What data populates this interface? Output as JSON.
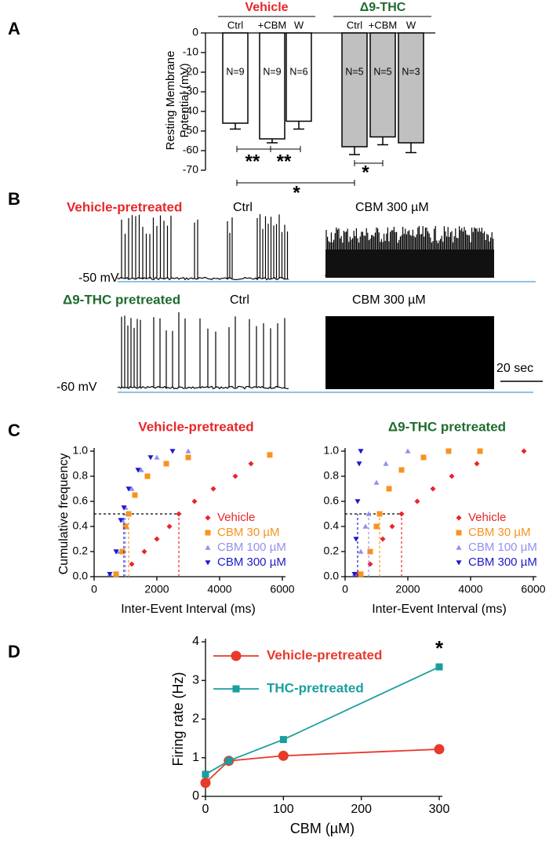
{
  "panel_letters": [
    "A",
    "B",
    "C",
    "D"
  ],
  "panel_b": {
    "top_title": "Vehicle-pretreated",
    "top_ctrl": "Ctrl",
    "top_cbm": "CBM 300 µM",
    "top_mv": "-50 mV",
    "bottom_title": "Δ9-THC pretreated",
    "bottom_ctrl": "Ctrl",
    "bottom_cbm": "CBM 300 µM",
    "bottom_mv": "-60 mV",
    "scale": "20 sec"
  },
  "chart_data": [
    {
      "type": "bar",
      "groups": [
        "Vehicle",
        "Δ9-THC"
      ],
      "group_colors": [
        "#e8262a",
        "#1e6b2e"
      ],
      "categories": [
        "Ctrl",
        "+CBM",
        "W",
        "Ctrl",
        "+CBM",
        "W"
      ],
      "values": [
        -46,
        -54,
        -45,
        -58,
        -53,
        -56
      ],
      "errors": [
        3,
        2,
        4,
        4,
        4,
        5
      ],
      "n_labels": [
        "N=9",
        "N=9",
        "N=6",
        "N=5",
        "N=5",
        "N=3"
      ],
      "bar_colors": [
        "#ffffff",
        "#ffffff",
        "#ffffff",
        "#c0c0c0",
        "#c0c0c0",
        "#c0c0c0"
      ],
      "y_label": [
        "Resting Membrane",
        "Potential (mV)"
      ],
      "ylim": [
        -70,
        0
      ],
      "yticks": [
        0,
        -10,
        -20,
        -30,
        -40,
        -50,
        -60,
        -70
      ],
      "significance": [
        "**",
        "**",
        "*",
        "*"
      ]
    },
    {
      "type": "scatter",
      "title": "Vehicle-pretreated",
      "title_color": "#e8262a",
      "y_label": "Cumulative frequency",
      "x_label": "Inter-Event Interval (ms)",
      "xlim": [
        0,
        6000
      ],
      "xticks": [
        0,
        2000,
        4000,
        6000
      ],
      "ylim": [
        0,
        1
      ],
      "yticks": [
        {
          "value": 0,
          "label": "0.0"
        },
        0.2,
        0.4,
        0.6,
        0.8,
        {
          "value": 1,
          "label": "1.0"
        }
      ],
      "reference_y": 0.5,
      "legend": "lower right",
      "series": [
        {
          "name": "Vehicle",
          "color": "#e8262a",
          "marker": "diamond",
          "median": 2700,
          "x": [
            700,
            1200,
            1600,
            2000,
            2400,
            2700,
            3200,
            3800,
            4500,
            5000,
            5600
          ],
          "values": [
            0.02,
            0.1,
            0.2,
            0.3,
            0.4,
            0.5,
            0.6,
            0.7,
            0.8,
            0.9,
            0.97
          ]
        },
        {
          "name": "CBM 30 µM",
          "color": "#f7931e",
          "marker": "square",
          "median": 1100,
          "x": [
            700,
            900,
            1000,
            1100,
            1300,
            1700,
            2300,
            3000,
            5600
          ],
          "values": [
            0.02,
            0.2,
            0.4,
            0.5,
            0.65,
            0.8,
            0.9,
            0.95,
            0.97
          ]
        },
        {
          "name": "CBM 100 µM",
          "color": "#9191ee",
          "marker": "triangle-up",
          "median": 1000,
          "x": [
            500,
            750,
            900,
            1000,
            1200,
            1500,
            2000,
            3000
          ],
          "values": [
            0.02,
            0.2,
            0.45,
            0.55,
            0.7,
            0.85,
            0.95,
            1
          ]
        },
        {
          "name": "CBM 300 µM",
          "color": "#1a1acc",
          "marker": "triangle-down",
          "median": 950,
          "x": [
            500,
            700,
            850,
            950,
            1100,
            1400,
            1800,
            2500
          ],
          "values": [
            0.02,
            0.2,
            0.45,
            0.55,
            0.7,
            0.85,
            0.95,
            1
          ]
        }
      ]
    },
    {
      "type": "scatter",
      "title": "Δ9-THC pretreated",
      "title_color": "#1e6b2e",
      "x_label": "Inter-Event Interval (ms)",
      "xlim": [
        0,
        6000
      ],
      "xticks": [
        0,
        2000,
        4000,
        6000
      ],
      "ylim": [
        0,
        1
      ],
      "yticks": [
        {
          "value": 0,
          "label": "0.0"
        },
        0.2,
        0.4,
        0.6,
        0.8,
        {
          "value": 1,
          "label": "1.0"
        }
      ],
      "reference_y": 0.5,
      "legend": "lower right",
      "series": [
        {
          "name": "Vehicle",
          "color": "#e8262a",
          "marker": "diamond",
          "median": 1800,
          "x": [
            400,
            800,
            1200,
            1500,
            1800,
            2300,
            2800,
            3400,
            4200,
            5700
          ],
          "values": [
            0.02,
            0.1,
            0.3,
            0.4,
            0.5,
            0.6,
            0.7,
            0.8,
            0.9,
            1
          ]
        },
        {
          "name": "CBM 30 µM",
          "color": "#f7931e",
          "marker": "square",
          "median": 1100,
          "x": [
            500,
            800,
            1000,
            1100,
            1400,
            1800,
            2500,
            3300,
            4300
          ],
          "values": [
            0.02,
            0.2,
            0.4,
            0.5,
            0.7,
            0.85,
            0.95,
            1,
            1
          ]
        },
        {
          "name": "CBM 100 µM",
          "color": "#9191ee",
          "marker": "triangle-up",
          "median": 750,
          "x": [
            300,
            500,
            650,
            750,
            1000,
            1300,
            2000
          ],
          "values": [
            0.02,
            0.2,
            0.4,
            0.5,
            0.75,
            0.9,
            1
          ]
        },
        {
          "name": "CBM 300 µM",
          "color": "#1a1acc",
          "marker": "triangle-down",
          "median": 400,
          "x": [
            300,
            350,
            400,
            450,
            500
          ],
          "values": [
            0.02,
            0.3,
            0.6,
            0.9,
            1
          ]
        }
      ]
    },
    {
      "type": "line",
      "x": [
        0,
        30,
        100,
        300
      ],
      "x_label": "CBM (µM)",
      "y_label": "Firing rate (Hz)",
      "xlim": [
        0,
        300
      ],
      "xticks": [
        0,
        100,
        200,
        300
      ],
      "ylim": [
        0,
        4
      ],
      "yticks": [
        0,
        1,
        2,
        3,
        4
      ],
      "legend": "upper left",
      "annotation": "*",
      "series": [
        {
          "name": "Vehicle-pretreated",
          "color": "#e8392a",
          "marker": "circle",
          "values": [
            0.35,
            0.92,
            1.05,
            1.22
          ]
        },
        {
          "name": "THC-pretreated",
          "color": "#1a9e9e",
          "marker": "square",
          "values": [
            0.57,
            0.92,
            1.47,
            3.35
          ]
        }
      ]
    }
  ]
}
